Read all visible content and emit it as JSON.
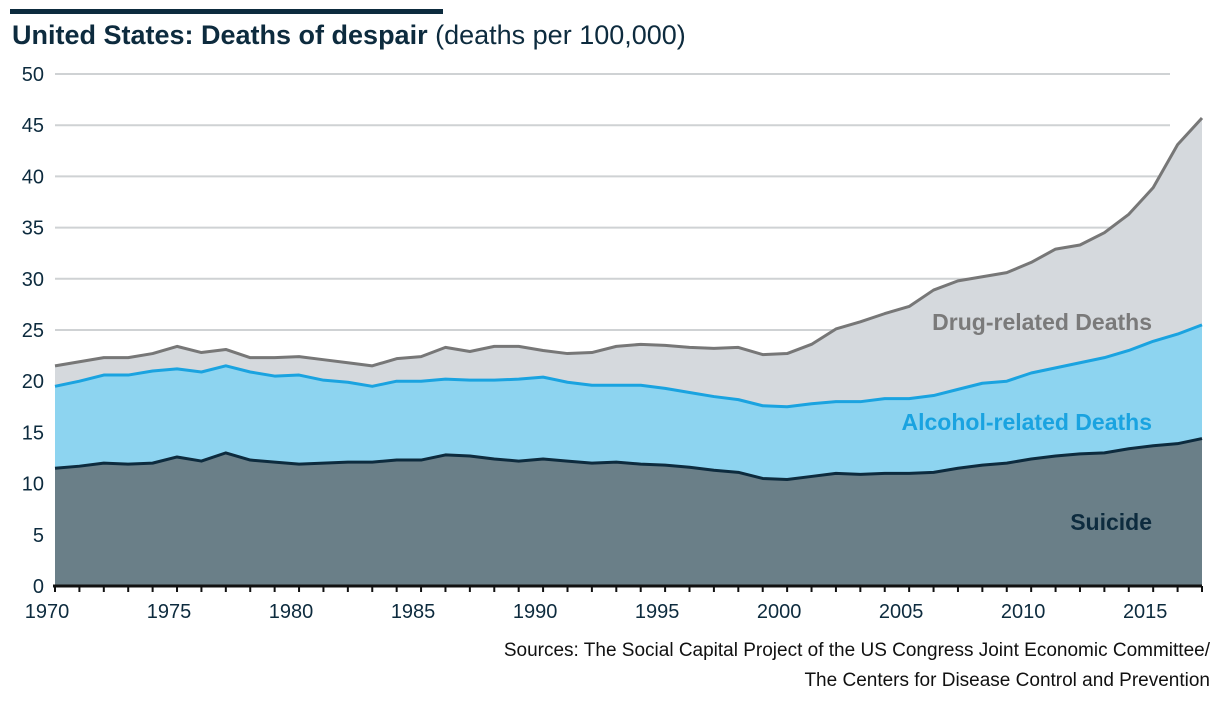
{
  "chart_data": {
    "type": "area",
    "stacked": true,
    "title": "United States: Deaths of despair",
    "subtitle": "(deaths per 100,000)",
    "xlabel": "",
    "ylabel": "",
    "ylim": [
      0,
      50
    ],
    "yticks": [
      "0",
      "5",
      "10",
      "15",
      "20",
      "25",
      "30",
      "35",
      "40",
      "45",
      "50"
    ],
    "xticks": [
      "1970",
      "1975",
      "1980",
      "1985",
      "1990",
      "1995",
      "2000",
      "2005",
      "2010",
      "2015"
    ],
    "grid": true,
    "x": [
      1970,
      1971,
      1972,
      1973,
      1974,
      1975,
      1976,
      1977,
      1978,
      1979,
      1980,
      1981,
      1982,
      1983,
      1984,
      1985,
      1986,
      1987,
      1988,
      1989,
      1990,
      1991,
      1992,
      1993,
      1994,
      1995,
      1996,
      1997,
      1998,
      1999,
      2000,
      2001,
      2002,
      2003,
      2004,
      2005,
      2006,
      2007,
      2008,
      2009,
      2010,
      2011,
      2012,
      2013,
      2014,
      2015,
      2016,
      2017
    ],
    "series": [
      {
        "name": "Suicide",
        "fill": "#6a7f88",
        "line": "#0d2b3e",
        "label_color": "#0d2b3e",
        "values": [
          11.5,
          11.7,
          12.0,
          11.9,
          12.0,
          12.6,
          12.2,
          13.0,
          12.3,
          12.1,
          11.9,
          12.0,
          12.1,
          12.1,
          12.3,
          12.3,
          12.8,
          12.7,
          12.4,
          12.2,
          12.4,
          12.2,
          12.0,
          12.1,
          11.9,
          11.8,
          11.6,
          11.3,
          11.1,
          10.5,
          10.4,
          10.7,
          11.0,
          10.9,
          11.0,
          11.0,
          11.1,
          11.5,
          11.8,
          12.0,
          12.4,
          12.7,
          12.9,
          13.0,
          13.4,
          13.7,
          13.9,
          14.4
        ]
      },
      {
        "name": "Alcohol-related Deaths",
        "fill": "#8dd4f0",
        "line": "#1aa3e0",
        "label_color": "#1aa3e0",
        "values": [
          8.0,
          8.3,
          8.6,
          8.7,
          9.0,
          8.6,
          8.7,
          8.5,
          8.6,
          8.4,
          8.7,
          8.1,
          7.8,
          7.4,
          7.7,
          7.7,
          7.4,
          7.4,
          7.7,
          8.0,
          8.0,
          7.7,
          7.6,
          7.5,
          7.7,
          7.5,
          7.3,
          7.2,
          7.1,
          7.1,
          7.1,
          7.1,
          7.0,
          7.1,
          7.3,
          7.3,
          7.5,
          7.7,
          8.0,
          8.0,
          8.4,
          8.6,
          8.9,
          9.3,
          9.6,
          10.2,
          10.7,
          11.1
        ]
      },
      {
        "name": "Drug-related Deaths",
        "fill": "#d5d9dd",
        "line": "#777777",
        "label_color": "#7a7a7a",
        "values": [
          2.0,
          1.9,
          1.7,
          1.7,
          1.7,
          2.2,
          1.9,
          1.6,
          1.4,
          1.8,
          1.8,
          2.0,
          1.9,
          2.0,
          2.2,
          2.4,
          3.1,
          2.8,
          3.3,
          3.2,
          2.6,
          2.8,
          3.2,
          3.8,
          4.0,
          4.2,
          4.4,
          4.7,
          5.1,
          5.0,
          5.2,
          5.8,
          7.1,
          7.8,
          8.3,
          9.0,
          10.3,
          10.6,
          10.4,
          10.6,
          10.8,
          11.6,
          11.5,
          12.2,
          13.3,
          15.0,
          18.5,
          20.2
        ]
      }
    ],
    "sources": [
      "Sources: The Social Capital Project of the US Congress Joint Economic Committee/",
      "The Centers for Disease Control and Prevention"
    ]
  }
}
